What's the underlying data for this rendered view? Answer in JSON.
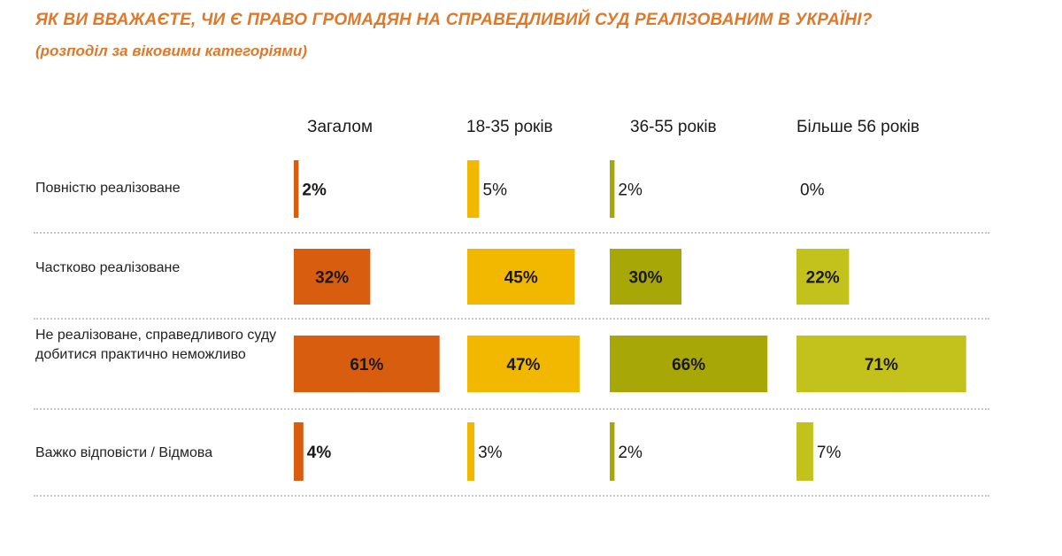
{
  "title": "ЯК ВИ ВВАЖАЄТЕ, ЧИ Є ПРАВО ГРОМАДЯН НА СПРАВЕДЛИВИЙ СУД РЕАЛІЗОВАНИМ В УКРАЇНІ?",
  "subtitle": "(розподіл за віковими категоріями)",
  "chart_data": {
    "type": "bar",
    "orientation": "horizontal",
    "value_unit": "%",
    "grid": false,
    "categories": [
      "Повністю реалізоване",
      "Частково реалізоване",
      "Не реалізоване, справедливого суду добитися практично неможливо",
      "Важко відповісти / Відмова"
    ],
    "series": [
      {
        "name": "Загалом",
        "color": "#d95d0f",
        "values": [
          2,
          32,
          61,
          4
        ]
      },
      {
        "name": "18-35 років",
        "color": "#f2b800",
        "values": [
          5,
          45,
          47,
          3
        ]
      },
      {
        "name": "36-55 років",
        "color": "#a7a807",
        "values": [
          2,
          30,
          66,
          2
        ]
      },
      {
        "name": "Більше 56 років",
        "color": "#c3c21c",
        "values": [
          0,
          22,
          71,
          7
        ]
      }
    ]
  }
}
